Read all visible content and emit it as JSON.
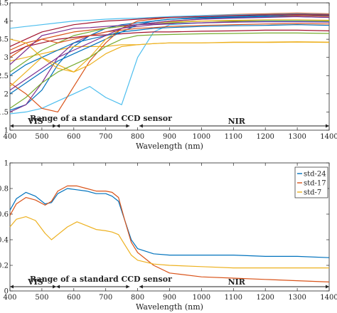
{
  "chart_data": [
    {
      "id": "top",
      "type": "line",
      "xlabel": "Wavelength (nm)",
      "ylabel": "",
      "xlim": [
        400,
        1400
      ],
      "ylim": [
        1,
        4.5
      ],
      "xticks": [
        400,
        500,
        600,
        700,
        800,
        900,
        1000,
        1100,
        1200,
        1300,
        1400
      ],
      "yticks": [
        1,
        1.5,
        2,
        2.5,
        3,
        3.5,
        4,
        4.5
      ],
      "grid": false,
      "annotations": {
        "vis": "VIS",
        "ccd": "Range of a standard CCD sensor",
        "nir": "NIR"
      },
      "x": [
        400,
        450,
        500,
        550,
        600,
        650,
        700,
        750,
        800,
        850,
        900,
        1000,
        1100,
        1200,
        1300,
        1400
      ],
      "series": [
        {
          "color": "#0072BD",
          "values": [
            1.55,
            1.7,
            2.1,
            2.8,
            3.3,
            3.6,
            3.8,
            3.9,
            3.95,
            4.0,
            4.05,
            4.1,
            4.12,
            4.15,
            4.17,
            4.15
          ]
        },
        {
          "color": "#D95319",
          "values": [
            3.0,
            3.3,
            3.5,
            3.6,
            3.7,
            3.75,
            3.8,
            3.85,
            3.9,
            3.95,
            4.0,
            4.05,
            4.1,
            4.12,
            4.15,
            4.13
          ]
        },
        {
          "color": "#EDB120",
          "values": [
            2.9,
            3.0,
            3.1,
            3.2,
            3.3,
            3.3,
            3.3,
            3.35,
            3.35,
            3.38,
            3.4,
            3.4,
            3.42,
            3.42,
            3.43,
            3.42
          ]
        },
        {
          "color": "#7E2F8E",
          "values": [
            1.5,
            1.7,
            2.3,
            3.0,
            3.4,
            3.6,
            3.7,
            3.8,
            3.85,
            3.9,
            3.92,
            3.95,
            3.98,
            4.0,
            4.0,
            3.98
          ]
        },
        {
          "color": "#77AC30",
          "values": [
            2.6,
            2.9,
            3.2,
            3.4,
            3.6,
            3.7,
            3.8,
            3.85,
            3.9,
            3.92,
            3.95,
            4.0,
            4.0,
            4.02,
            4.02,
            4.0
          ]
        },
        {
          "color": "#4DBEEE",
          "values": [
            1.45,
            1.5,
            1.6,
            1.8,
            2.0,
            2.2,
            1.9,
            1.7,
            3.0,
            3.7,
            3.9,
            3.95,
            3.97,
            4.0,
            4.0,
            3.98
          ]
        },
        {
          "color": "#A2142F",
          "values": [
            3.1,
            3.3,
            3.4,
            3.5,
            3.55,
            3.6,
            3.62,
            3.65,
            3.68,
            3.7,
            3.7,
            3.72,
            3.73,
            3.75,
            3.75,
            3.73
          ]
        },
        {
          "color": "#0072BD",
          "values": [
            2.0,
            2.3,
            2.6,
            2.9,
            3.1,
            3.3,
            3.5,
            3.7,
            3.9,
            4.0,
            4.05,
            4.08,
            4.1,
            4.12,
            4.12,
            4.1
          ]
        },
        {
          "color": "#D95319",
          "values": [
            2.3,
            2.0,
            1.6,
            1.5,
            2.2,
            2.9,
            3.4,
            3.8,
            4.0,
            4.05,
            4.1,
            4.15,
            4.18,
            4.2,
            4.22,
            4.2
          ]
        },
        {
          "color": "#EDB120",
          "values": [
            2.2,
            2.6,
            3.0,
            2.8,
            2.6,
            3.0,
            3.5,
            3.8,
            3.9,
            3.95,
            3.98,
            4.0,
            4.02,
            4.03,
            4.03,
            4.02
          ]
        },
        {
          "color": "#7E2F8E",
          "values": [
            2.8,
            3.2,
            3.6,
            3.7,
            3.8,
            3.82,
            3.85,
            3.88,
            3.9,
            3.92,
            3.93,
            3.95,
            3.97,
            3.98,
            3.98,
            3.97
          ]
        },
        {
          "color": "#77AC30",
          "values": [
            1.6,
            1.9,
            2.3,
            2.6,
            2.8,
            3.0,
            3.3,
            3.5,
            3.6,
            3.62,
            3.63,
            3.65,
            3.66,
            3.67,
            3.67,
            3.66
          ]
        },
        {
          "color": "#4DBEEE",
          "values": [
            3.8,
            3.85,
            3.9,
            3.95,
            4.0,
            4.02,
            4.05,
            4.07,
            4.08,
            4.1,
            4.12,
            4.15,
            4.17,
            4.18,
            4.2,
            4.18
          ]
        },
        {
          "color": "#A2142F",
          "values": [
            3.3,
            3.5,
            3.7,
            3.8,
            3.9,
            3.95,
            4.0,
            4.02,
            4.05,
            4.08,
            4.1,
            4.12,
            4.15,
            4.17,
            4.18,
            4.17
          ]
        },
        {
          "color": "#0072BD",
          "values": [
            2.5,
            2.8,
            3.0,
            3.2,
            3.4,
            3.5,
            3.6,
            3.7,
            3.75,
            3.8,
            3.82,
            3.85,
            3.87,
            3.88,
            3.9,
            3.88
          ]
        },
        {
          "color": "#D95319",
          "values": [
            3.2,
            3.4,
            3.5,
            3.4,
            3.5,
            3.6,
            3.7,
            3.75,
            3.8,
            3.82,
            3.85,
            3.88,
            3.9,
            3.92,
            3.93,
            3.92
          ]
        },
        {
          "color": "#EDB120",
          "values": [
            3.5,
            3.4,
            3.0,
            2.7,
            2.6,
            2.8,
            3.1,
            3.3,
            3.35,
            3.38,
            3.4,
            3.4,
            3.41,
            3.41,
            3.42,
            3.41
          ]
        },
        {
          "color": "#7E2F8E",
          "values": [
            2.1,
            2.4,
            2.7,
            3.0,
            3.2,
            3.4,
            3.6,
            3.8,
            3.9,
            3.95,
            4.0,
            4.05,
            4.08,
            4.1,
            4.12,
            4.1
          ]
        }
      ]
    },
    {
      "id": "bottom",
      "type": "line",
      "xlabel": "Wavelength (nm)",
      "ylabel": "",
      "xlim": [
        400,
        1400
      ],
      "ylim": [
        0,
        1
      ],
      "xticks": [
        400,
        500,
        600,
        700,
        800,
        900,
        1000,
        1100,
        1200,
        1300,
        1400
      ],
      "yticks": [
        0,
        0.2,
        0.4,
        0.6,
        0.8,
        1
      ],
      "grid": false,
      "legend": "top-right",
      "annotations": {
        "vis": "VIS",
        "ccd": "Range of a standard CCD sensor",
        "nir": "NIR"
      },
      "x": [
        400,
        420,
        450,
        480,
        510,
        530,
        550,
        580,
        610,
        640,
        670,
        700,
        720,
        740,
        760,
        780,
        800,
        850,
        900,
        1000,
        1100,
        1200,
        1300,
        1400
      ],
      "series": [
        {
          "name": "std-24",
          "color": "#0072BD",
          "values": [
            0.63,
            0.72,
            0.77,
            0.74,
            0.68,
            0.69,
            0.76,
            0.8,
            0.79,
            0.78,
            0.76,
            0.76,
            0.74,
            0.7,
            0.55,
            0.4,
            0.33,
            0.29,
            0.28,
            0.28,
            0.28,
            0.27,
            0.27,
            0.26
          ]
        },
        {
          "name": "std-17",
          "color": "#D95319",
          "values": [
            0.59,
            0.68,
            0.73,
            0.71,
            0.67,
            0.7,
            0.78,
            0.82,
            0.82,
            0.8,
            0.78,
            0.78,
            0.77,
            0.73,
            0.55,
            0.38,
            0.3,
            0.2,
            0.14,
            0.11,
            0.1,
            0.09,
            0.08,
            0.07
          ]
        },
        {
          "name": "std-7",
          "color": "#EDB120",
          "values": [
            0.5,
            0.56,
            0.58,
            0.55,
            0.45,
            0.4,
            0.44,
            0.5,
            0.54,
            0.51,
            0.48,
            0.47,
            0.46,
            0.44,
            0.36,
            0.28,
            0.24,
            0.21,
            0.2,
            0.19,
            0.18,
            0.18,
            0.18,
            0.18
          ]
        }
      ]
    }
  ]
}
